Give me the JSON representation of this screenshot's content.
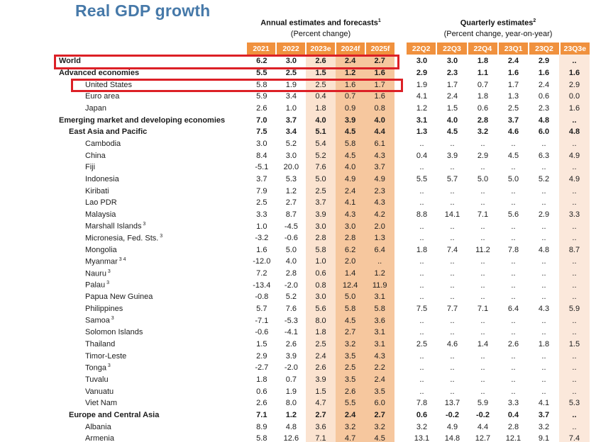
{
  "page": {
    "title": "Real GDP growth",
    "colors": {
      "title_blue": "#4679A9",
      "header_orange": "#F0913E",
      "shade_light": "#FBE3D0",
      "shade_dark": "#F6C79E",
      "shade_quarter": "#FBE8DB",
      "highlight_red": "#DC2026"
    }
  },
  "table": {
    "group_headers": {
      "annual": {
        "label": "Annual estimates and forecasts",
        "sup": "1",
        "subtitle": "(Percent change)"
      },
      "quarterly": {
        "label": "Quarterly estimates",
        "sup": "2",
        "subtitle": "(Percent change, year-on-year)"
      }
    },
    "annual_columns": [
      "2021",
      "2022",
      "2023e",
      "2024f",
      "2025f"
    ],
    "quarterly_columns": [
      "22Q2",
      "22Q3",
      "22Q4",
      "23Q1",
      "23Q2",
      "23Q3e"
    ],
    "rows": [
      {
        "label": "World",
        "indent": 0,
        "bold": true,
        "highlight": true,
        "annual": [
          "6.2",
          "3.0",
          "2.6",
          "2.4",
          "2.7"
        ],
        "quarterly": [
          "3.0",
          "3.0",
          "1.8",
          "2.4",
          "2.9",
          ".."
        ]
      },
      {
        "label": "Advanced economies",
        "indent": 0,
        "bold": true,
        "annual": [
          "5.5",
          "2.5",
          "1.5",
          "1.2",
          "1.6"
        ],
        "quarterly": [
          "2.9",
          "2.3",
          "1.1",
          "1.6",
          "1.6",
          "1.6"
        ]
      },
      {
        "label": "United States",
        "indent": 2,
        "bold": false,
        "highlight": true,
        "annual": [
          "5.8",
          "1.9",
          "2.5",
          "1.6",
          "1.7"
        ],
        "quarterly": [
          "1.9",
          "1.7",
          "0.7",
          "1.7",
          "2.4",
          "2.9"
        ]
      },
      {
        "label": "Euro area",
        "indent": 2,
        "bold": false,
        "annual": [
          "5.9",
          "3.4",
          "0.4",
          "0.7",
          "1.6"
        ],
        "quarterly": [
          "4.1",
          "2.4",
          "1.8",
          "1.3",
          "0.6",
          "0.0"
        ]
      },
      {
        "label": "Japan",
        "indent": 2,
        "bold": false,
        "annual": [
          "2.6",
          "1.0",
          "1.8",
          "0.9",
          "0.8"
        ],
        "quarterly": [
          "1.2",
          "1.5",
          "0.6",
          "2.5",
          "2.3",
          "1.6"
        ]
      },
      {
        "label": "Emerging market and developing economies",
        "indent": 0,
        "bold": true,
        "annual": [
          "7.0",
          "3.7",
          "4.0",
          "3.9",
          "4.0"
        ],
        "quarterly": [
          "3.1",
          "4.0",
          "2.8",
          "3.7",
          "4.8",
          ".."
        ]
      },
      {
        "label": "East Asia and Pacific",
        "indent": 1,
        "bold": true,
        "annual": [
          "7.5",
          "3.4",
          "5.1",
          "4.5",
          "4.4"
        ],
        "quarterly": [
          "1.3",
          "4.5",
          "3.2",
          "4.6",
          "6.0",
          "4.8"
        ]
      },
      {
        "label": "Cambodia",
        "indent": 2,
        "bold": false,
        "annual": [
          "3.0",
          "5.2",
          "5.4",
          "5.8",
          "6.1"
        ],
        "quarterly": [
          "..",
          "..",
          "..",
          "..",
          "..",
          ".."
        ]
      },
      {
        "label": "China",
        "indent": 2,
        "bold": false,
        "annual": [
          "8.4",
          "3.0",
          "5.2",
          "4.5",
          "4.3"
        ],
        "quarterly": [
          "0.4",
          "3.9",
          "2.9",
          "4.5",
          "6.3",
          "4.9"
        ]
      },
      {
        "label": "Fiji",
        "indent": 2,
        "bold": false,
        "annual": [
          "-5.1",
          "20.0",
          "7.6",
          "4.0",
          "3.7"
        ],
        "quarterly": [
          "..",
          "..",
          "..",
          "..",
          "..",
          ".."
        ]
      },
      {
        "label": "Indonesia",
        "indent": 2,
        "bold": false,
        "annual": [
          "3.7",
          "5.3",
          "5.0",
          "4.9",
          "4.9"
        ],
        "quarterly": [
          "5.5",
          "5.7",
          "5.0",
          "5.0",
          "5.2",
          "4.9"
        ]
      },
      {
        "label": "Kiribati",
        "indent": 2,
        "bold": false,
        "annual": [
          "7.9",
          "1.2",
          "2.5",
          "2.4",
          "2.3"
        ],
        "quarterly": [
          "..",
          "..",
          "..",
          "..",
          "..",
          ".."
        ]
      },
      {
        "label": "Lao PDR",
        "indent": 2,
        "bold": false,
        "annual": [
          "2.5",
          "2.7",
          "3.7",
          "4.1",
          "4.3"
        ],
        "quarterly": [
          "..",
          "..",
          "..",
          "..",
          "..",
          ".."
        ]
      },
      {
        "label": "Malaysia",
        "indent": 2,
        "bold": false,
        "annual": [
          "3.3",
          "8.7",
          "3.9",
          "4.3",
          "4.2"
        ],
        "quarterly": [
          "8.8",
          "14.1",
          "7.1",
          "5.6",
          "2.9",
          "3.3"
        ]
      },
      {
        "label": "Marshall Islands",
        "sup": "3",
        "indent": 2,
        "bold": false,
        "annual": [
          "1.0",
          "-4.5",
          "3.0",
          "3.0",
          "2.0"
        ],
        "quarterly": [
          "..",
          "..",
          "..",
          "..",
          "..",
          ".."
        ]
      },
      {
        "label": "Micronesia, Fed. Sts.",
        "sup": "3",
        "indent": 2,
        "bold": false,
        "annual": [
          "-3.2",
          "-0.6",
          "2.8",
          "2.8",
          "1.3"
        ],
        "quarterly": [
          "..",
          "..",
          "..",
          "..",
          "..",
          ".."
        ]
      },
      {
        "label": "Mongolia",
        "indent": 2,
        "bold": false,
        "annual": [
          "1.6",
          "5.0",
          "5.8",
          "6.2",
          "6.4"
        ],
        "quarterly": [
          "1.8",
          "7.4",
          "11.2",
          "7.8",
          "4.8",
          "8.7"
        ]
      },
      {
        "label": "Myanmar",
        "sup": "3 4",
        "indent": 2,
        "bold": false,
        "annual": [
          "-12.0",
          "4.0",
          "1.0",
          "2.0",
          ".."
        ],
        "quarterly": [
          "..",
          "..",
          "..",
          "..",
          "..",
          ".."
        ]
      },
      {
        "label": "Nauru",
        "sup": "3",
        "indent": 2,
        "bold": false,
        "annual": [
          "7.2",
          "2.8",
          "0.6",
          "1.4",
          "1.2"
        ],
        "quarterly": [
          "..",
          "..",
          "..",
          "..",
          "..",
          ".."
        ]
      },
      {
        "label": "Palau",
        "sup": "3",
        "indent": 2,
        "bold": false,
        "annual": [
          "-13.4",
          "-2.0",
          "0.8",
          "12.4",
          "11.9"
        ],
        "quarterly": [
          "..",
          "..",
          "..",
          "..",
          "..",
          ".."
        ]
      },
      {
        "label": "Papua New Guinea",
        "indent": 2,
        "bold": false,
        "annual": [
          "-0.8",
          "5.2",
          "3.0",
          "5.0",
          "3.1"
        ],
        "quarterly": [
          "..",
          "..",
          "..",
          "..",
          "..",
          ".."
        ]
      },
      {
        "label": "Philippines",
        "indent": 2,
        "bold": false,
        "annual": [
          "5.7",
          "7.6",
          "5.6",
          "5.8",
          "5.8"
        ],
        "quarterly": [
          "7.5",
          "7.7",
          "7.1",
          "6.4",
          "4.3",
          "5.9"
        ]
      },
      {
        "label": "Samoa",
        "sup": "3",
        "indent": 2,
        "bold": false,
        "annual": [
          "-7.1",
          "-5.3",
          "8.0",
          "4.5",
          "3.6"
        ],
        "quarterly": [
          "..",
          "..",
          "..",
          "..",
          "..",
          ".."
        ]
      },
      {
        "label": "Solomon Islands",
        "indent": 2,
        "bold": false,
        "annual": [
          "-0.6",
          "-4.1",
          "1.8",
          "2.7",
          "3.1"
        ],
        "quarterly": [
          "..",
          "..",
          "..",
          "..",
          "..",
          ".."
        ]
      },
      {
        "label": "Thailand",
        "indent": 2,
        "bold": false,
        "annual": [
          "1.5",
          "2.6",
          "2.5",
          "3.2",
          "3.1"
        ],
        "quarterly": [
          "2.5",
          "4.6",
          "1.4",
          "2.6",
          "1.8",
          "1.5"
        ]
      },
      {
        "label": "Timor-Leste",
        "indent": 2,
        "bold": false,
        "annual": [
          "2.9",
          "3.9",
          "2.4",
          "3.5",
          "4.3"
        ],
        "quarterly": [
          "..",
          "..",
          "..",
          "..",
          "..",
          ".."
        ]
      },
      {
        "label": "Tonga",
        "sup": "3",
        "indent": 2,
        "bold": false,
        "annual": [
          "-2.7",
          "-2.0",
          "2.6",
          "2.5",
          "2.2"
        ],
        "quarterly": [
          "..",
          "..",
          "..",
          "..",
          "..",
          ".."
        ]
      },
      {
        "label": "Tuvalu",
        "indent": 2,
        "bold": false,
        "annual": [
          "1.8",
          "0.7",
          "3.9",
          "3.5",
          "2.4"
        ],
        "quarterly": [
          "..",
          "..",
          "..",
          "..",
          "..",
          ".."
        ]
      },
      {
        "label": "Vanuatu",
        "indent": 2,
        "bold": false,
        "annual": [
          "0.6",
          "1.9",
          "1.5",
          "2.6",
          "3.5"
        ],
        "quarterly": [
          "..",
          "..",
          "..",
          "..",
          "..",
          ".."
        ]
      },
      {
        "label": "Viet Nam",
        "indent": 2,
        "bold": false,
        "annual": [
          "2.6",
          "8.0",
          "4.7",
          "5.5",
          "6.0"
        ],
        "quarterly": [
          "7.8",
          "13.7",
          "5.9",
          "3.3",
          "4.1",
          "5.3"
        ]
      },
      {
        "label": "Europe and Central Asia",
        "indent": 1,
        "bold": true,
        "annual": [
          "7.1",
          "1.2",
          "2.7",
          "2.4",
          "2.7"
        ],
        "quarterly": [
          "0.6",
          "-0.2",
          "-0.2",
          "0.4",
          "3.7",
          ".."
        ]
      },
      {
        "label": "Albania",
        "indent": 2,
        "bold": false,
        "annual": [
          "8.9",
          "4.8",
          "3.6",
          "3.2",
          "3.2"
        ],
        "quarterly": [
          "3.2",
          "4.9",
          "4.4",
          "2.8",
          "3.2",
          ".."
        ]
      },
      {
        "label": "Armenia",
        "indent": 2,
        "bold": false,
        "annual": [
          "5.8",
          "12.6",
          "7.1",
          "4.7",
          "4.5"
        ],
        "quarterly": [
          "13.1",
          "14.8",
          "12.7",
          "12.1",
          "9.1",
          "7.4"
        ]
      }
    ]
  }
}
